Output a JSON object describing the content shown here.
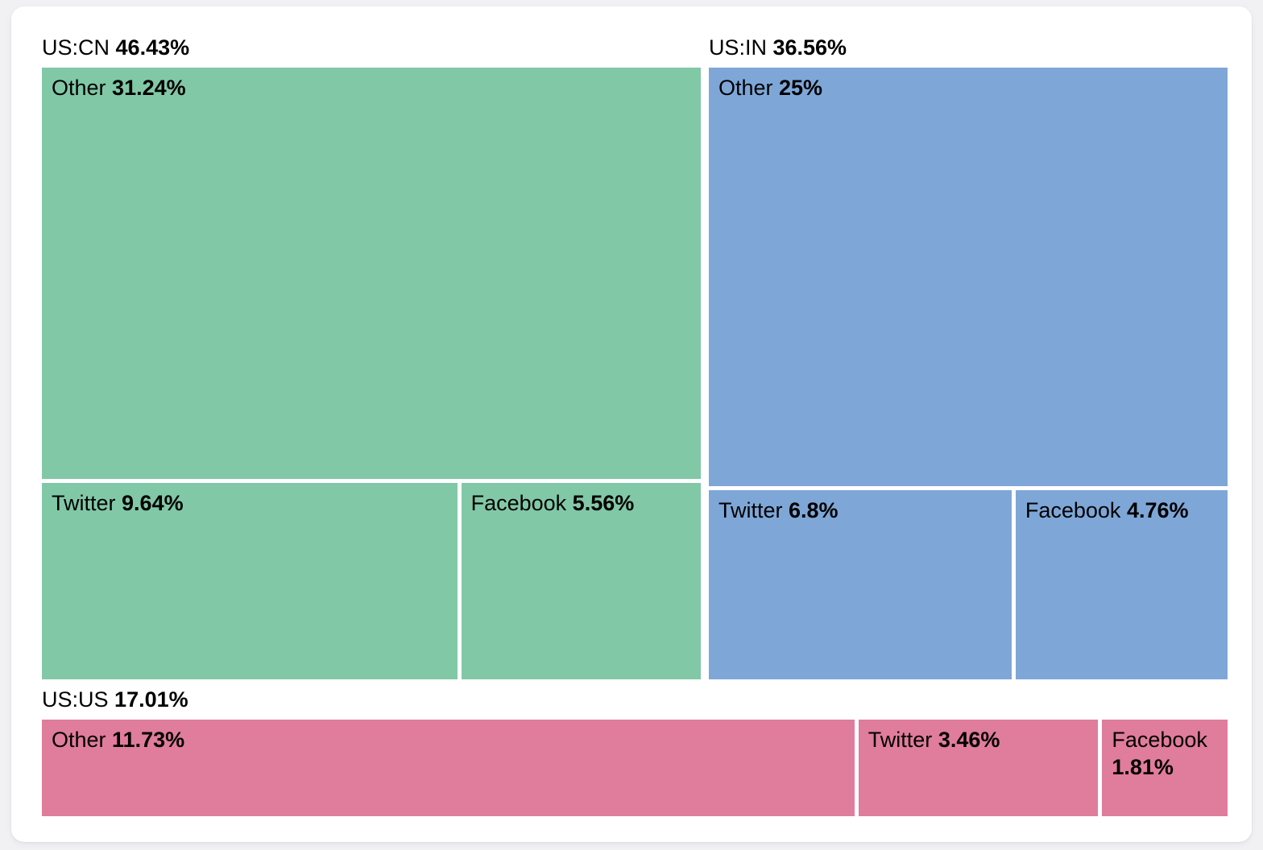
{
  "page": {
    "background_color": "#f1f1f3",
    "card_color": "#ffffff",
    "text_color": "#000000"
  },
  "chart_data": {
    "type": "treemap",
    "title": "",
    "legend_position": "none",
    "grid": false,
    "value_format": "percent",
    "groups": [
      {
        "label": "US:CN",
        "value": 46.43,
        "value_label": "46.43%",
        "color": "#81c8a7",
        "layout": "column-row",
        "children": [
          {
            "label": "Other",
            "value": 31.24,
            "value_label": "31.24%"
          },
          {
            "label": "Twitter",
            "value": 9.64,
            "value_label": "9.64%"
          },
          {
            "label": "Facebook",
            "value": 5.56,
            "value_label": "5.56%"
          }
        ]
      },
      {
        "label": "US:IN",
        "value": 36.56,
        "value_label": "36.56%",
        "color": "#7ea7d8",
        "layout": "column-row",
        "children": [
          {
            "label": "Other",
            "value": 25,
            "value_label": "25%"
          },
          {
            "label": "Twitter",
            "value": 6.8,
            "value_label": "6.8%"
          },
          {
            "label": "Facebook",
            "value": 4.76,
            "value_label": "4.76%"
          }
        ]
      },
      {
        "label": "US:US",
        "value": 17.01,
        "value_label": "17.01%",
        "color": "#e07c9c",
        "layout": "row",
        "children": [
          {
            "label": "Other",
            "value": 11.73,
            "value_label": "11.73%"
          },
          {
            "label": "Twitter",
            "value": 3.46,
            "value_label": "3.46%"
          },
          {
            "label": "Facebook",
            "value": 1.81,
            "value_label": "1.81%"
          }
        ]
      }
    ]
  }
}
